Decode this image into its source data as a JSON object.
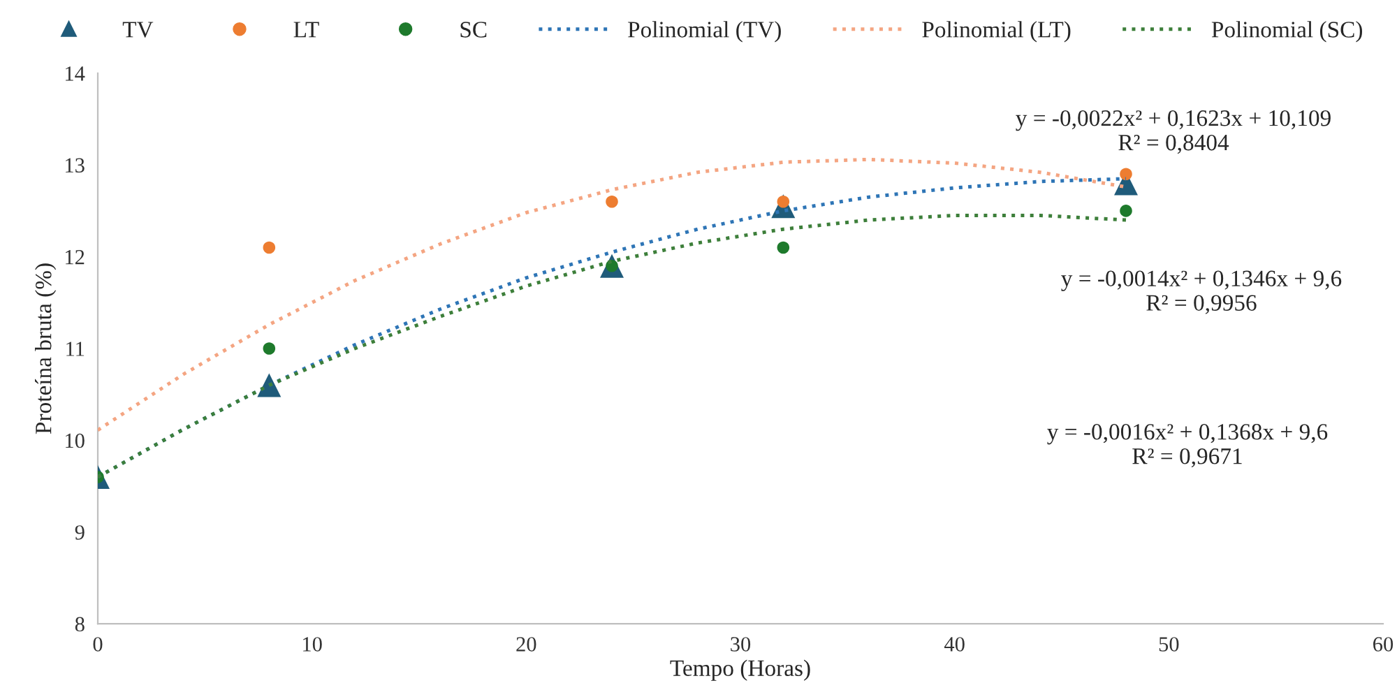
{
  "chart_data": {
    "type": "scatter",
    "xlabel": "Tempo (Horas)",
    "ylabel": "Proteína bruta (%)",
    "xlim": [
      0,
      60
    ],
    "xticks": [
      0,
      10,
      20,
      30,
      40,
      50,
      60
    ],
    "ylim": [
      8,
      14
    ],
    "yticks": [
      8,
      9,
      10,
      11,
      12,
      13,
      14
    ],
    "grid": false,
    "legend": "top",
    "series": [
      {
        "name": "TV",
        "marker": "triangle",
        "color": "#1f5b7a",
        "x": [
          0,
          8,
          24,
          32,
          48
        ],
        "values": [
          9.6,
          10.6,
          11.9,
          12.55,
          12.8
        ]
      },
      {
        "name": "LT",
        "marker": "circle",
        "color": "#ed7d31",
        "x": [
          8,
          24,
          32,
          48
        ],
        "values": [
          12.1,
          12.6,
          12.6,
          12.9
        ]
      },
      {
        "name": "SC",
        "marker": "circle",
        "color": "#1e7a2c",
        "x": [
          0,
          8,
          24,
          32,
          48
        ],
        "values": [
          9.6,
          11.0,
          11.9,
          12.1,
          12.5
        ]
      },
      {
        "name": "Polinomial (TV)",
        "type": "line",
        "line_style": "dotted",
        "color": "#2e75b6",
        "x": [
          0,
          4,
          8,
          12,
          16,
          20,
          24,
          28,
          32,
          36,
          40,
          44,
          48
        ],
        "values": [
          9.6,
          10.12,
          10.6,
          11.04,
          11.43,
          11.77,
          12.05,
          12.3,
          12.5,
          12.65,
          12.75,
          12.82,
          12.85
        ]
      },
      {
        "name": "Polinomial (LT)",
        "type": "line",
        "line_style": "dotted",
        "color": "#f4a582",
        "x": [
          0,
          4,
          8,
          12,
          16,
          20,
          24,
          28,
          32,
          36,
          40,
          44,
          48
        ],
        "values": [
          10.11,
          10.72,
          11.26,
          11.74,
          12.14,
          12.48,
          12.73,
          12.92,
          13.03,
          13.06,
          13.02,
          12.92,
          12.76
        ]
      },
      {
        "name": "Polinomial (SC)",
        "type": "line",
        "line_style": "dotted",
        "color": "#3d7f3a",
        "x": [
          0,
          4,
          8,
          12,
          16,
          20,
          24,
          28,
          32,
          36,
          40,
          44,
          48
        ],
        "values": [
          9.6,
          10.12,
          10.6,
          11.0,
          11.35,
          11.68,
          11.95,
          12.15,
          12.3,
          12.4,
          12.45,
          12.45,
          12.4
        ]
      }
    ],
    "annotations": [
      "y = -0,0022x² + 0,1623x + 10,109\nR² = 0,8404",
      "y = -0,0014x² + 0,1346x + 9,6\nR² = 0,9956",
      "y = -0,0016x² + 0,1368x + 9,6\nR² = 0,9671"
    ]
  }
}
